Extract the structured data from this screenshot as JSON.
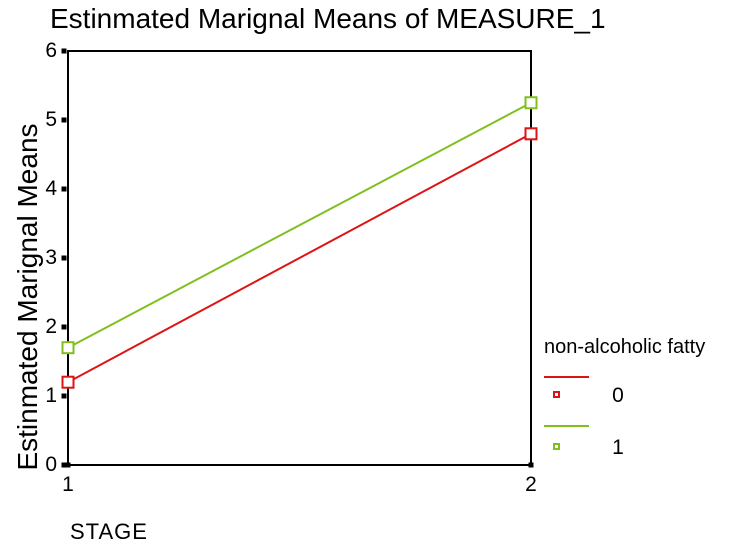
{
  "chart_data": {
    "type": "line",
    "title": "Estinmated Marignal Means of MEASURE_1",
    "xlabel": "STAGE",
    "ylabel": "Estinmated Marignal Means",
    "x": [
      1,
      2
    ],
    "series": [
      {
        "name": "0",
        "color": "#dd1414",
        "values": [
          1.2,
          4.8
        ]
      },
      {
        "name": "1",
        "color": "#7fc01f",
        "values": [
          1.7,
          5.25
        ]
      }
    ],
    "xlim": [
      1,
      2
    ],
    "ylim": [
      0,
      6
    ],
    "yticks": [
      0,
      1,
      2,
      3,
      4,
      5,
      6
    ],
    "xticks": [
      1,
      2
    ],
    "grid": false,
    "marker": "open-square",
    "legend": {
      "title": "non-alcoholic fatty",
      "position": "right-bottom"
    },
    "frame_color": "#000000",
    "background_color": "#ffffff"
  }
}
